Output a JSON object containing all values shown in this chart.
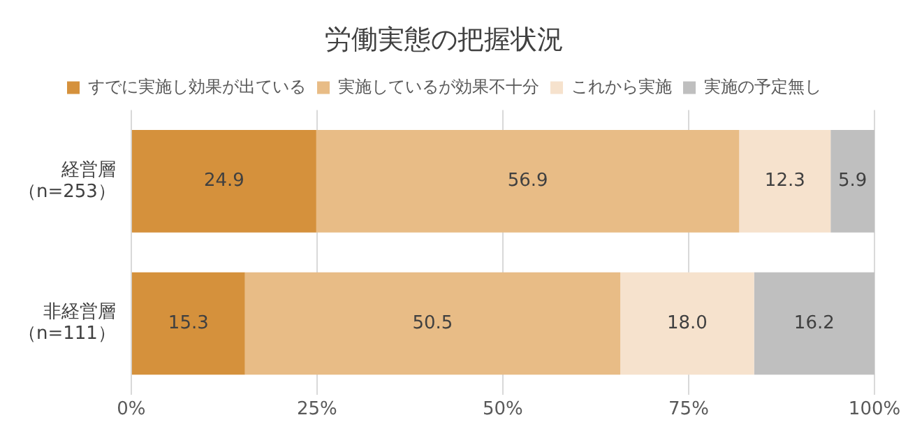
{
  "chart_data": {
    "type": "bar",
    "title": "労働実態の把握状況",
    "orientation": "horizontal",
    "stacked": true,
    "categories": [
      "経営層（n=253）",
      "非経営層（n=111）"
    ],
    "series": [
      {
        "name": "すでに実施し効果が出ている",
        "color": "#d5913c",
        "values": [
          24.9,
          15.3
        ],
        "value_labels": [
          "24.9",
          "15.3"
        ]
      },
      {
        "name": "実施しているが効果不十分",
        "color": "#e8bc86",
        "values": [
          56.9,
          50.5
        ],
        "value_labels": [
          "56.9",
          "50.5"
        ]
      },
      {
        "name": "これから実施",
        "color": "#f6e2cd",
        "values": [
          12.3,
          18.0
        ],
        "value_labels": [
          "12.3",
          "18.0"
        ]
      },
      {
        "name": "実施の予定無し",
        "color": "#bfbfbf",
        "values": [
          5.9,
          16.2
        ],
        "value_labels": [
          "5.9",
          "16.2"
        ]
      }
    ],
    "xlim": [
      0,
      100
    ],
    "xticks": [
      {
        "value": 0,
        "label": "0%"
      },
      {
        "value": 25,
        "label": "25%"
      },
      {
        "value": 50,
        "label": "50%"
      },
      {
        "value": 75,
        "label": "75%"
      },
      {
        "value": 100,
        "label": "100%"
      }
    ],
    "grid": "x",
    "legend": "top"
  }
}
